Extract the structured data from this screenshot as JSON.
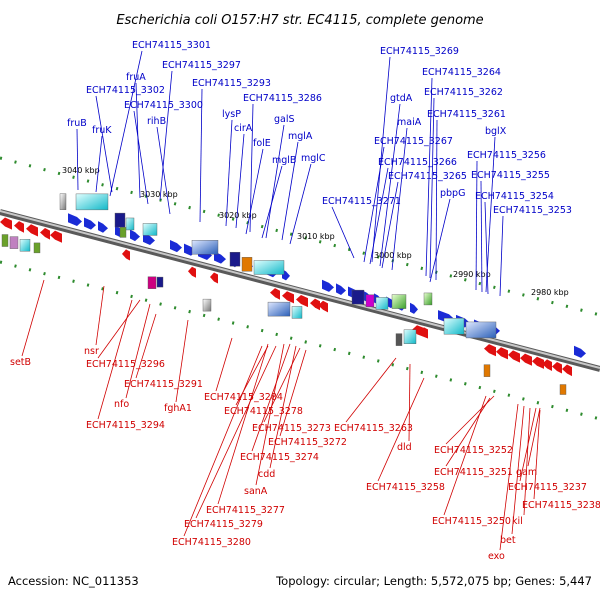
{
  "title": "Escherichia coli O157:H7 str. EC4115, complete genome",
  "footer": {
    "accession": "Accession: NC_011353",
    "summary": "Topology: circular; Length: 5,572,075 bp; Genes: 5,447"
  },
  "scale_ticks": [
    "3040 kbp",
    "3030 kbp",
    "3020 kbp",
    "3010 kbp",
    "3000 kbp",
    "2990 kbp",
    "2980 kbp"
  ],
  "top_labels": [
    "ECH74115_3301",
    "ECH74115_3297",
    "fruA",
    "ECH74115_3302",
    "ECH74115_3300",
    "rihB",
    "fruB",
    "fruK",
    "ECH74115_3293",
    "lysP",
    "cirA",
    "ECH74115_3286",
    "galS",
    "folE",
    "mglA",
    "mglB",
    "mglC",
    "ECH74115_3269",
    "ECH74115_3264",
    "ECH74115_3262",
    "gtdA",
    "maiA",
    "ECH74115_3261",
    "ECH74115_3267",
    "bglX",
    "ECH74115_3266",
    "ECH74115_3256",
    "ECH74115_3265",
    "ECH74115_3255",
    "pbpG",
    "ECH74115_3254",
    "ECH74115_3271",
    "ECH74115_3253"
  ],
  "bottom_labels": [
    "setB",
    "nsr",
    "ECH74115_3296",
    "ECH74115_3291",
    "nfo",
    "fghA1",
    "ECH74115_3294",
    "ECH74115_3284",
    "ECH74115_3278",
    "ECH74115_3273",
    "ECH74115_3263",
    "ECH74115_3272",
    "dld",
    "ECH74115_3274",
    "cdd",
    "sanA",
    "ECH74115_3277",
    "ECH74115_3279",
    "ECH74115_3280",
    "ECH74115_3258",
    "ECH74115_3252",
    "ECH74115_3251",
    "gam",
    "ECH74115_3237",
    "ECH74115_3238",
    "ECH74115_3250",
    "kil",
    "bet",
    "exo"
  ],
  "colors": {
    "top_label": "#0000c8",
    "bottom_label": "#d00000",
    "forward_gene": "#1a2bd6",
    "reverse_gene": "#e01010",
    "backbone": "#888888"
  }
}
